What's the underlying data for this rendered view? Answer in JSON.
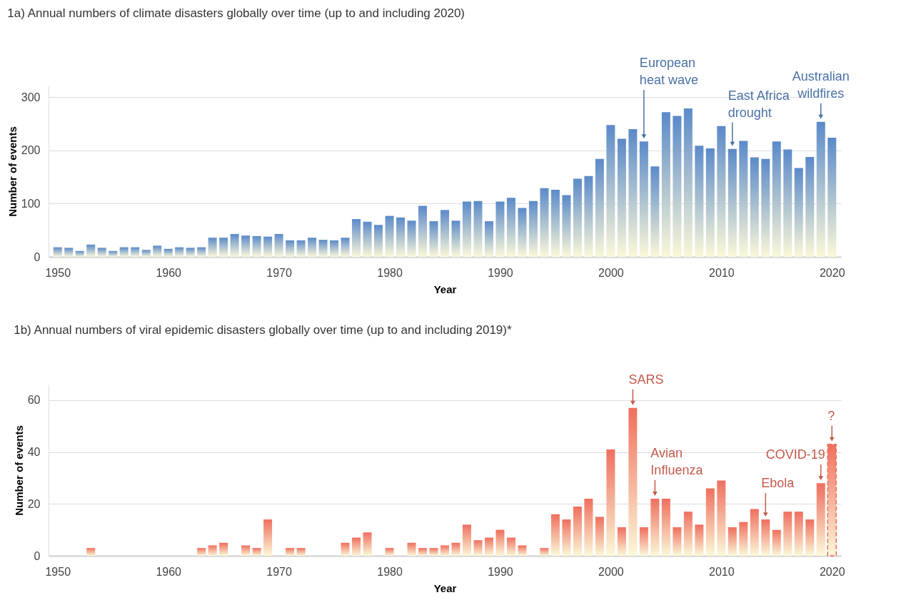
{
  "chart_data": [
    {
      "type": "bar",
      "title": "1a) Annual numbers of climate disasters globally over time (up to and including 2020)",
      "xlabel": "Year",
      "ylabel": "Number of events",
      "x": [
        1950,
        1951,
        1952,
        1953,
        1954,
        1955,
        1956,
        1957,
        1958,
        1959,
        1960,
        1961,
        1962,
        1963,
        1964,
        1965,
        1966,
        1967,
        1968,
        1969,
        1970,
        1971,
        1972,
        1973,
        1974,
        1975,
        1976,
        1977,
        1978,
        1979,
        1980,
        1981,
        1982,
        1983,
        1984,
        1985,
        1986,
        1987,
        1988,
        1989,
        1990,
        1991,
        1992,
        1993,
        1994,
        1995,
        1996,
        1997,
        1998,
        1999,
        2000,
        2001,
        2002,
        2003,
        2004,
        2005,
        2006,
        2007,
        2008,
        2009,
        2010,
        2011,
        2012,
        2013,
        2014,
        2015,
        2016,
        2017,
        2018,
        2019,
        2020
      ],
      "series": [
        {
          "color": "#5b8ac9",
          "values": [
            18,
            17,
            11,
            23,
            17,
            11,
            18,
            18,
            13,
            21,
            15,
            18,
            17,
            18,
            36,
            36,
            43,
            40,
            39,
            38,
            43,
            31,
            31,
            36,
            32,
            31,
            36,
            71,
            66,
            60,
            77,
            74,
            68,
            96,
            67,
            88,
            68,
            104,
            105,
            67,
            104,
            111,
            92,
            105,
            129,
            126,
            116,
            147,
            152,
            184,
            248,
            222,
            240,
            217,
            170,
            272,
            265,
            279,
            209,
            204,
            246,
            203,
            218,
            187,
            184,
            217,
            202,
            167,
            188,
            254,
            224
          ]
        }
      ],
      "xlim": [
        1949.5,
        2020.5
      ],
      "xticks": [
        1950,
        1960,
        1970,
        1980,
        1990,
        2000,
        2010,
        2020
      ],
      "ylim": [
        0,
        322
      ],
      "yticks": [
        0,
        100,
        200,
        300
      ],
      "grid": "y",
      "annotations": [
        {
          "text": "European\nheat wave",
          "x": 2003,
          "y": 217
        },
        {
          "text": "East Africa\ndrought",
          "x": 2011,
          "y": 203
        },
        {
          "text": "Australian\nwildfires",
          "x": 2019,
          "y": 254
        }
      ]
    },
    {
      "type": "bar",
      "title": "1b) Annual numbers of viral epidemic disasters globally over time (up to and including 2019)*",
      "xlabel": "Year",
      "ylabel": "Number of events",
      "x": [
        1950,
        1951,
        1952,
        1953,
        1954,
        1955,
        1956,
        1957,
        1958,
        1959,
        1960,
        1961,
        1962,
        1963,
        1964,
        1965,
        1966,
        1967,
        1968,
        1969,
        1970,
        1971,
        1972,
        1973,
        1974,
        1975,
        1976,
        1977,
        1978,
        1979,
        1980,
        1981,
        1982,
        1983,
        1984,
        1985,
        1986,
        1987,
        1988,
        1989,
        1990,
        1991,
        1992,
        1993,
        1994,
        1995,
        1996,
        1997,
        1998,
        1999,
        2000,
        2001,
        2002,
        2003,
        2004,
        2005,
        2006,
        2007,
        2008,
        2009,
        2010,
        2011,
        2012,
        2013,
        2014,
        2015,
        2016,
        2017,
        2018,
        2019
      ],
      "series": [
        {
          "color": "#ef6f5e",
          "values": [
            0,
            0,
            0,
            3,
            0,
            0,
            0,
            0,
            0,
            0,
            0,
            0,
            0,
            3,
            4,
            5,
            0,
            4,
            3,
            14,
            0,
            3,
            3,
            0,
            0,
            0,
            5,
            7,
            9,
            0,
            3,
            0,
            5,
            3,
            3,
            4,
            5,
            12,
            6,
            7,
            10,
            7,
            4,
            0,
            3,
            16,
            14,
            19,
            22,
            15,
            41,
            11,
            57,
            11,
            22,
            22,
            11,
            17,
            12,
            26,
            29,
            11,
            13,
            18,
            14,
            10,
            17,
            17,
            14,
            28
          ]
        },
        {
          "color": "#ef6f5e",
          "x": [
            2020
          ],
          "values": [
            43
          ],
          "line_style": "dashed"
        }
      ],
      "xlim": [
        1949.5,
        2020.5
      ],
      "xticks": [
        1950,
        1960,
        1970,
        1980,
        1990,
        2000,
        2010,
        2020
      ],
      "ylim": [
        0,
        66
      ],
      "yticks": [
        0,
        20,
        40,
        60
      ],
      "grid": "y",
      "annotations": [
        {
          "text": "SARS",
          "x": 2002,
          "y": 57
        },
        {
          "text": "Avian\nInfluenza",
          "x": 2004,
          "y": 22
        },
        {
          "text": "Ebola",
          "x": 2014,
          "y": 14
        },
        {
          "text": "COVID-19",
          "x": 2019,
          "y": 28
        },
        {
          "text": "?",
          "x": 2020,
          "y": 43
        }
      ]
    }
  ]
}
